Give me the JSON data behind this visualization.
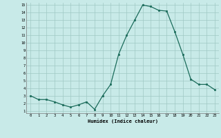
{
  "x": [
    0,
    1,
    2,
    3,
    4,
    5,
    6,
    7,
    8,
    9,
    10,
    11,
    12,
    13,
    14,
    15,
    16,
    17,
    18,
    19,
    20,
    21,
    22,
    23
  ],
  "y": [
    3.0,
    2.5,
    2.5,
    2.2,
    1.8,
    1.5,
    1.8,
    2.2,
    1.2,
    3.0,
    4.5,
    8.5,
    11.0,
    13.0,
    15.0,
    14.8,
    14.3,
    14.2,
    11.5,
    8.5,
    5.2,
    4.5,
    4.5,
    3.8
  ],
  "xlabel": "Humidex (Indice chaleur)",
  "ylim": [
    1,
    15
  ],
  "xlim": [
    -0.5,
    23.5
  ],
  "yticks": [
    1,
    2,
    3,
    4,
    5,
    6,
    7,
    8,
    9,
    10,
    11,
    12,
    13,
    14,
    15
  ],
  "xticks": [
    0,
    1,
    2,
    3,
    4,
    5,
    6,
    7,
    8,
    9,
    10,
    11,
    12,
    13,
    14,
    15,
    16,
    17,
    18,
    19,
    20,
    21,
    22,
    23
  ],
  "line_color": "#1a6b5a",
  "marker_color": "#1a6b5a",
  "bg_color": "#c8eae8",
  "grid_color": "#9fc8c4",
  "title": ""
}
